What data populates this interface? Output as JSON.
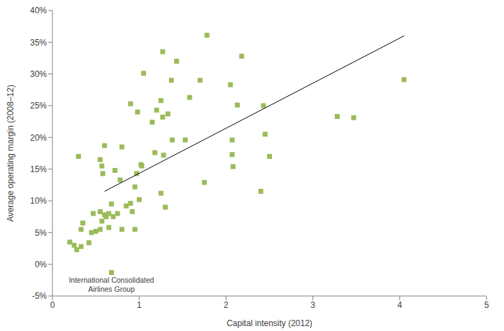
{
  "chart_data": {
    "type": "scatter",
    "x_label": "Capital intensity (2012)",
    "y_label": "Average operating margin (2008–12)",
    "xlim": [
      0,
      5
    ],
    "xticks": [
      0,
      1,
      2,
      3,
      4,
      5
    ],
    "ylim": [
      -5,
      40
    ],
    "yticks": [
      {
        "value": -5,
        "label": "-5%"
      },
      {
        "value": 0,
        "label": "0%"
      },
      {
        "value": 5,
        "label": "5%"
      },
      {
        "value": 10,
        "label": "10%"
      },
      {
        "value": 15,
        "label": "15%"
      },
      {
        "value": 20,
        "label": "20%"
      },
      {
        "value": 25,
        "label": "25%"
      },
      {
        "value": 30,
        "label": "30%"
      },
      {
        "value": 35,
        "label": "35%"
      },
      {
        "value": 40,
        "label": "40%"
      }
    ],
    "grid": false,
    "series": [
      {
        "type": "scatter",
        "marker": "square",
        "color": "#9bbb59",
        "x": [
          0.2,
          0.25,
          0.28,
          0.33,
          0.3,
          0.35,
          0.33,
          0.42,
          0.45,
          0.5,
          0.47,
          0.55,
          0.6,
          0.62,
          0.57,
          0.55,
          0.55,
          0.57,
          0.6,
          0.58,
          0.65,
          0.68,
          0.7,
          0.65,
          0.72,
          0.75,
          0.78,
          0.8,
          0.8,
          0.85,
          0.9,
          0.92,
          0.9,
          0.95,
          0.95,
          0.97,
          0.98,
          1.0,
          1.02,
          1.03,
          1.05,
          1.15,
          1.18,
          1.2,
          1.25,
          1.25,
          1.27,
          1.28,
          1.27,
          1.3,
          1.33,
          1.37,
          1.38,
          1.43,
          1.53,
          1.58,
          1.7,
          1.75,
          1.78,
          2.05,
          2.07,
          2.07,
          2.08,
          2.13,
          2.18,
          2.4,
          2.43,
          2.45,
          2.5,
          3.28,
          3.47,
          4.05,
          0.68
        ],
        "values": [
          3.5,
          3,
          2.3,
          2.8,
          17,
          6.5,
          5.5,
          3.4,
          5,
          5.2,
          8,
          8.3,
          7.8,
          7.5,
          6.8,
          5.5,
          16.5,
          15.5,
          18.7,
          14.3,
          8,
          9.5,
          7.5,
          5.8,
          14.8,
          8,
          13.3,
          18.5,
          5.5,
          9.2,
          25.3,
          8.3,
          9.6,
          12.2,
          5.5,
          14.3,
          24,
          10.2,
          15.7,
          15.5,
          30.1,
          22.4,
          17.6,
          24.3,
          11.2,
          25.8,
          23.2,
          17.2,
          33.5,
          9,
          23.7,
          29,
          19.6,
          32,
          19.6,
          26.3,
          29,
          12.9,
          36.1,
          28.3,
          19.6,
          17.3,
          15.4,
          25.1,
          32.8,
          11.5,
          25,
          20.5,
          17,
          23.3,
          23.1,
          29.1,
          -1.3
        ]
      },
      {
        "type": "line",
        "line_style": "solid",
        "color": "#000000",
        "x": [
          0.6,
          4.05
        ],
        "values": [
          11.5,
          36
        ]
      }
    ],
    "annotations": [
      {
        "text": "International Consolidated Airlines Group",
        "x": 0.68,
        "y": -1.3
      }
    ]
  }
}
